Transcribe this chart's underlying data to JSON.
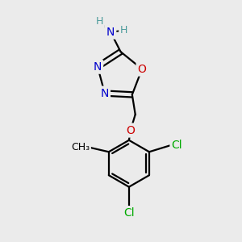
{
  "bg_color": "#ebebeb",
  "atom_colors": {
    "C": "#000000",
    "N": "#0000cc",
    "O": "#cc0000",
    "Cl": "#00aa00",
    "H": "#4a9a9a",
    "CH3": "#000000"
  },
  "bond_color": "#000000",
  "fig_size": [
    3.0,
    3.0
  ],
  "dpi": 100
}
